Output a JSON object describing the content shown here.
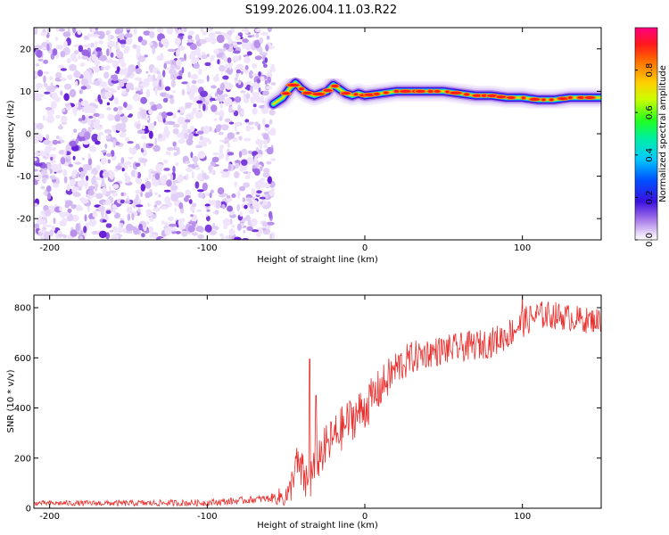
{
  "title": "S199.2026.004.11.03.R22",
  "chart_data": [
    {
      "type": "heatmap",
      "name": "spectrogram",
      "xlabel": "Height of straight line (km)",
      "ylabel": "Frequency (Hz)",
      "xlim": [
        -210,
        150
      ],
      "ylim": [
        -25,
        25
      ],
      "xticks": [
        -200,
        -100,
        0,
        100
      ],
      "yticks": [
        -20,
        -10,
        0,
        10,
        20
      ],
      "colorbar": {
        "label": "Normalized spectral amplitude",
        "range": [
          0,
          1
        ],
        "ticks": [
          0.0,
          0.2,
          0.4,
          0.6,
          0.8
        ]
      },
      "noise_region_x": [
        -210,
        -58
      ],
      "signal_track": {
        "x": [
          -58,
          -52,
          -48,
          -44,
          -40,
          -36,
          -32,
          -28,
          -24,
          -20,
          -16,
          -12,
          -8,
          -4,
          0,
          10,
          20,
          30,
          40,
          50,
          60,
          70,
          80,
          90,
          100,
          110,
          120,
          130,
          140,
          150
        ],
        "freq": [
          7.0,
          8.5,
          10.5,
          12.0,
          10.5,
          9.5,
          9.0,
          9.5,
          10.0,
          11.5,
          10.5,
          9.5,
          9.0,
          9.5,
          9.0,
          9.5,
          10.0,
          10.0,
          10.0,
          10.0,
          9.5,
          9.0,
          9.0,
          8.5,
          8.5,
          8.0,
          8.0,
          8.5,
          8.5,
          8.5
        ]
      }
    },
    {
      "type": "line",
      "name": "snr",
      "xlabel": "Height of straight line (km)",
      "ylabel": "SNR (10 * v/v)",
      "xlim": [
        -210,
        150
      ],
      "ylim": [
        0,
        850
      ],
      "xticks": [
        -200,
        -100,
        0,
        100
      ],
      "yticks": [
        0,
        200,
        400,
        600,
        800
      ],
      "color": "#e8312f",
      "trend": {
        "x": [
          -210,
          -150,
          -100,
          -80,
          -60,
          -48,
          -44,
          -40,
          -36,
          -30,
          -20,
          -10,
          0,
          10,
          20,
          30,
          40,
          60,
          80,
          90,
          100,
          110,
          120,
          130,
          140,
          150
        ],
        "y": [
          20,
          20,
          22,
          30,
          40,
          50,
          180,
          140,
          90,
          200,
          280,
          350,
          400,
          480,
          560,
          600,
          620,
          640,
          660,
          690,
          740,
          770,
          770,
          760,
          750,
          750
        ]
      },
      "noise_amplitude": {
        "x": [
          -210,
          -60,
          -40,
          0,
          40,
          100,
          150
        ],
        "y": [
          10,
          15,
          90,
          90,
          60,
          60,
          50
        ]
      },
      "spikes": [
        {
          "x": -35,
          "y": 595
        },
        {
          "x": -31,
          "y": 450
        },
        {
          "x": 100,
          "y": 850
        }
      ]
    }
  ]
}
